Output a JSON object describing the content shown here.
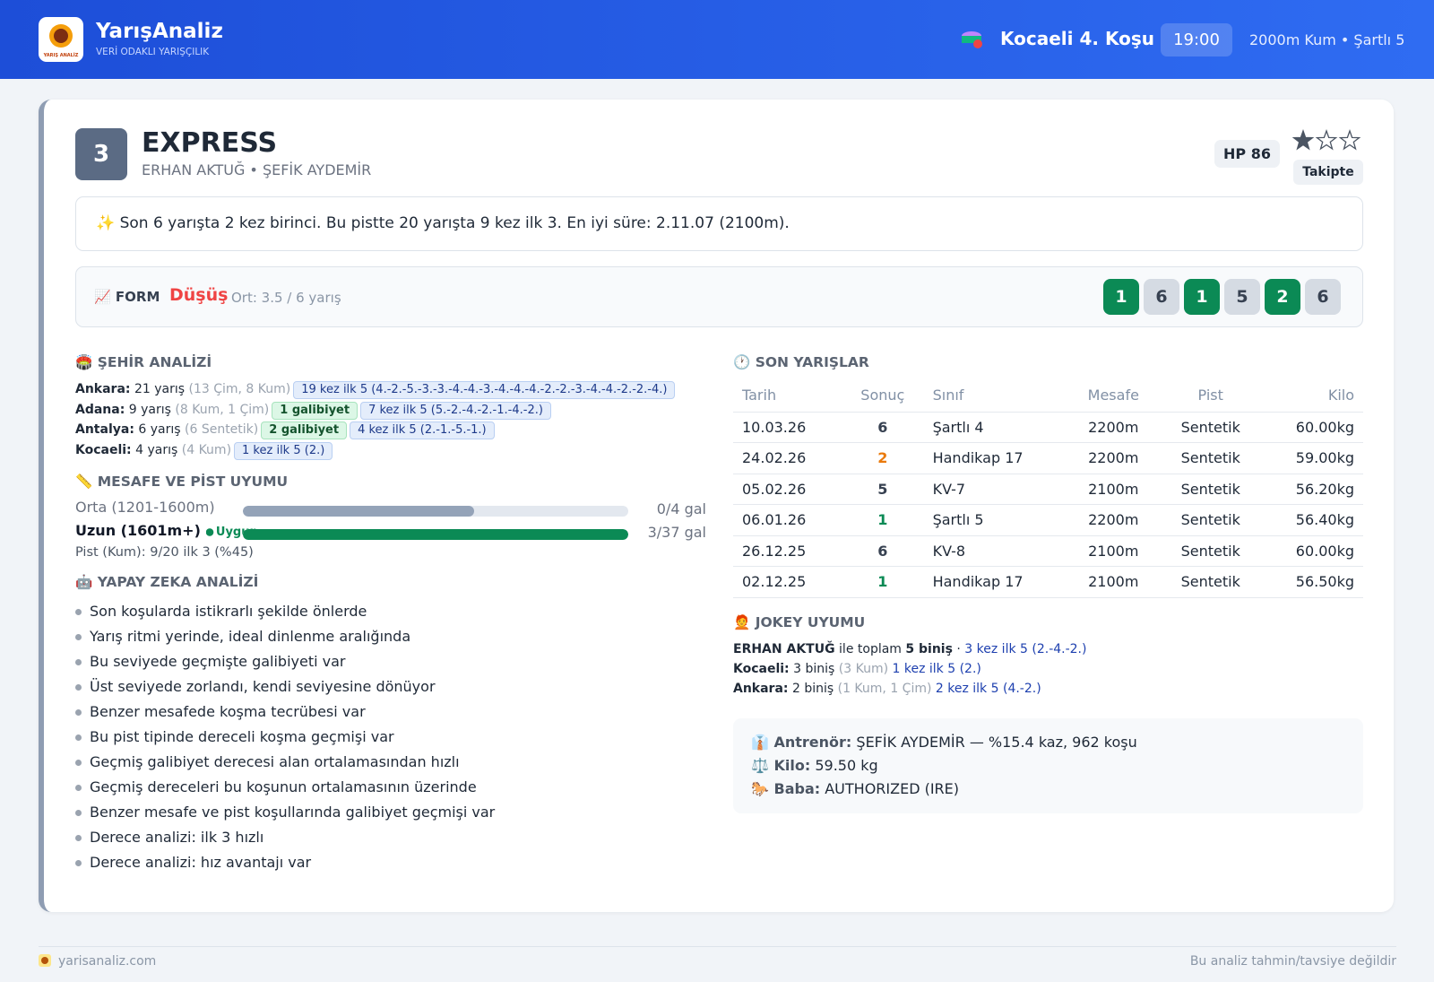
{
  "header": {
    "logo_label": "YARIŞ ANALİZ",
    "brand": "YarışAnaliz",
    "tagline": "VERİ ODAKLI YARIŞÇILIK",
    "race": "Kocaeli 4. Koşu",
    "time": "19:00",
    "info": "2000m Kum • Şartlı 5"
  },
  "horse": {
    "number": 3,
    "name": "EXPRESS",
    "people": "ERHAN AKTUĞ • ŞEFİK AYDEMİR",
    "hp": "HP 86",
    "rating": 1,
    "rating_max": 3,
    "status": "Takipte"
  },
  "summary": "✨ Son 6 yarışta 2 kez birinci. Bu pistte 20 yarışta 9 kez ilk 3. En iyi süre: 2.11.07 (2100m).",
  "form": {
    "label": "📈 FORM",
    "trend": "Düşüş",
    "average": "Ort: 3.5 / 6 yarış",
    "results": [
      1,
      6,
      1,
      5,
      2,
      6
    ]
  },
  "city_analysis": {
    "title": "🏟️ ŞEHİR ANALİZİ",
    "rows": [
      {
        "city": "Ankara:",
        "races": "21 yarış",
        "detail": "(13 Çim, 8 Kum)",
        "badges": [
          {
            "text": "19 kez ilk 5 (4.-2.-5.-3.-3.-4.-4.-3.-4.-4.-4.-2.-2.-3.-4.-4.-2.-2.-4.)",
            "style": "blue"
          }
        ]
      },
      {
        "city": "Adana:",
        "races": "9 yarış",
        "detail": "(8 Kum, 1 Çim)",
        "badges": [
          {
            "text": "1 galibiyet",
            "style": "green"
          },
          {
            "text": "7 kez ilk 5 (5.-2.-4.-2.-1.-4.-2.)",
            "style": "blue"
          }
        ]
      },
      {
        "city": "Antalya:",
        "races": "6 yarış",
        "detail": "(6 Sentetik)",
        "badges": [
          {
            "text": "2 galibiyet",
            "style": "green"
          },
          {
            "text": "4 kez ilk 5 (2.-1.-5.-1.)",
            "style": "blue"
          }
        ]
      },
      {
        "city": "Kocaeli:",
        "races": "4 yarış",
        "detail": "(4 Kum)",
        "badges": [
          {
            "text": "1 kez ilk 5 (2.)",
            "style": "blue"
          }
        ]
      }
    ]
  },
  "distance": {
    "title": "📏 MESAFE VE PİST UYUMU",
    "rows": [
      {
        "label": "Orta (1201-1600m)",
        "bar": 60,
        "record": "0/4 gal"
      },
      {
        "label": "Uzun (1601m+)",
        "tag": "Uygun",
        "bar": 100,
        "record": "3/37 gal"
      }
    ],
    "track": "Pist (Kum): 9/20 ilk 3 (%45)"
  },
  "ai_analysis": {
    "title": "🤖 YAPAY ZEKA ANALİZİ",
    "items": [
      "Son koşularda istikrarlı şekilde önlerde",
      "Yarış ritmi yerinde, ideal dinlenme aralığında",
      "Bu seviyede geçmişte galibiyeti var",
      "Üst seviyede zorlandı, kendi seviyesine dönüyor",
      "Benzer mesafede koşma tecrübesi var",
      "Bu pist tipinde dereceli koşma geçmişi var",
      "Geçmiş galibiyet derecesi alan ortalamasından hızlı",
      "Geçmiş dereceleri bu koşunun ortalamasının üzerinde",
      "Benzer mesafe ve pist koşullarında galibiyet geçmişi var",
      "Derece analizi: ilk 3 hızlı",
      "Derece analizi: hız avantajı var"
    ]
  },
  "recent_races": {
    "title": "🕐 SON YARIŞLAR",
    "columns": [
      "Tarih",
      "Sonuç",
      "Sınıf",
      "Mesafe",
      "Pist",
      "Kilo"
    ],
    "rows": [
      [
        "10.03.26",
        6,
        "Şartlı 4",
        "2200m",
        "Sentetik",
        "60.00kg"
      ],
      [
        "24.02.26",
        2,
        "Handikap 17",
        "2200m",
        "Sentetik",
        "59.00kg"
      ],
      [
        "05.02.26",
        5,
        "KV-7",
        "2100m",
        "Sentetik",
        "56.20kg"
      ],
      [
        "06.01.26",
        1,
        "Şartlı 5",
        "2200m",
        "Sentetik",
        "56.40kg"
      ],
      [
        "26.12.25",
        6,
        "KV-8",
        "2100m",
        "Sentetik",
        "60.00kg"
      ],
      [
        "02.12.25",
        1,
        "Handikap 17",
        "2100m",
        "Sentetik",
        "56.50kg"
      ]
    ]
  },
  "jockey": {
    "title": "🧑‍🦰 JOKEY UYUMU",
    "lines": [
      [
        {
          "text": "ERHAN AKTUĞ",
          "style": "bold"
        },
        {
          "text": " ile toplam "
        },
        {
          "text": "5 biniş",
          "style": "bold"
        },
        {
          "text": " · "
        },
        {
          "text": "3 kez ilk 5 (2.-4.-2.)",
          "style": "link"
        }
      ],
      [
        {
          "text": "Kocaeli:",
          "style": "bold"
        },
        {
          "text": " 3 biniş "
        },
        {
          "text": "(3 Kum)",
          "style": "muted"
        },
        {
          "text": " 1 kez ilk 5 (2.)",
          "style": "link"
        }
      ],
      [
        {
          "text": "Ankara:",
          "style": "bold"
        },
        {
          "text": " 2 biniş "
        },
        {
          "text": "(1 Kum, 1 Çim)",
          "style": "muted"
        },
        {
          "text": " 2 kez ilk 5 (4.-2.)",
          "style": "link"
        }
      ]
    ]
  },
  "info": [
    {
      "label": "👔 Antrenör:",
      "value": " ŞEFİK AYDEMİR — %15.4 kaz, 962 koşu"
    },
    {
      "label": "⚖️ Kilo:",
      "value": " 59.50 kg"
    },
    {
      "label": "🐎 Baba:",
      "value": " AUTHORIZED (IRE)"
    }
  ],
  "footer": {
    "site": "yarisanaliz.com",
    "disclaimer": "Bu analiz tahmin/tavsiye değildir"
  }
}
